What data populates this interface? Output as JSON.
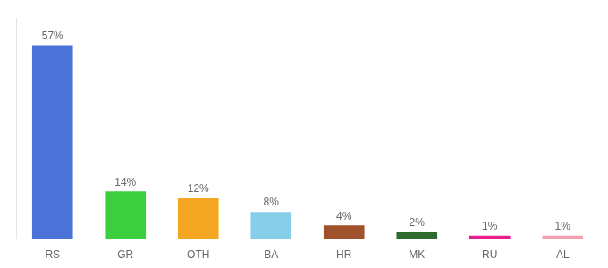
{
  "chart_data": {
    "type": "bar",
    "categories": [
      "RS",
      "GR",
      "OTH",
      "BA",
      "HR",
      "MK",
      "RU",
      "AL"
    ],
    "values": [
      57,
      14,
      12,
      8,
      4,
      2,
      1,
      1
    ],
    "value_labels": [
      "57%",
      "14%",
      "12%",
      "8%",
      "4%",
      "2%",
      "1%",
      "1%"
    ],
    "colors": [
      "#4d72d8",
      "#3ecf3e",
      "#f5a623",
      "#87ceeb",
      "#a0522d",
      "#2d6a2d",
      "#e91e8c",
      "#f4a0b0"
    ],
    "ylim": [
      0,
      65
    ],
    "data_labels": true,
    "tick_labels": "x",
    "grid": false
  }
}
